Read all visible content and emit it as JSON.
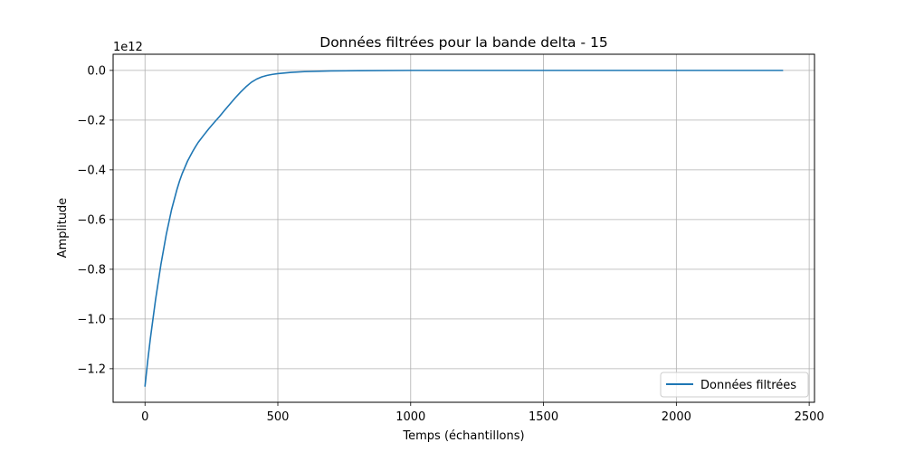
{
  "chart_data": {
    "type": "line",
    "title": "Données filtrées pour la bande delta - 15",
    "xlabel": "Temps (échantillons)",
    "ylabel": "Amplitude",
    "offset_text": "1e12",
    "xlim": [
      -120,
      2520
    ],
    "ylim": [
      -1.335,
      0.065
    ],
    "x_ticks": [
      0,
      500,
      1000,
      1500,
      2000,
      2500
    ],
    "x_tick_labels": [
      "0",
      "500",
      "1000",
      "1500",
      "2000",
      "2500"
    ],
    "y_ticks": [
      0.0,
      -0.2,
      -0.4,
      -0.6,
      -0.8,
      -1.0,
      -1.2
    ],
    "y_tick_labels": [
      "0.0",
      "−0.2",
      "−0.4",
      "−0.6",
      "−0.8",
      "−1.0",
      "−1.2"
    ],
    "grid": true,
    "legend_position": "lower-right",
    "series": [
      {
        "name": "Données filtrées",
        "color": "#1f77b4",
        "x": [
          0,
          10,
          20,
          30,
          40,
          50,
          60,
          70,
          80,
          90,
          100,
          110,
          120,
          130,
          140,
          150,
          160,
          170,
          180,
          190,
          200,
          220,
          240,
          260,
          280,
          300,
          320,
          340,
          360,
          380,
          400,
          420,
          440,
          460,
          480,
          500,
          550,
          600,
          700,
          800,
          1000,
          1500,
          2000,
          2400
        ],
        "y": [
          -1.27,
          -1.17,
          -1.08,
          -1.0,
          -0.92,
          -0.85,
          -0.78,
          -0.72,
          -0.66,
          -0.61,
          -0.56,
          -0.52,
          -0.48,
          -0.445,
          -0.415,
          -0.39,
          -0.365,
          -0.345,
          -0.325,
          -0.307,
          -0.29,
          -0.262,
          -0.235,
          -0.21,
          -0.186,
          -0.16,
          -0.135,
          -0.11,
          -0.087,
          -0.066,
          -0.048,
          -0.035,
          -0.026,
          -0.02,
          -0.016,
          -0.013,
          -0.008,
          -0.005,
          -0.002,
          -0.001,
          0.0,
          0.0,
          0.0,
          0.0
        ]
      }
    ]
  }
}
